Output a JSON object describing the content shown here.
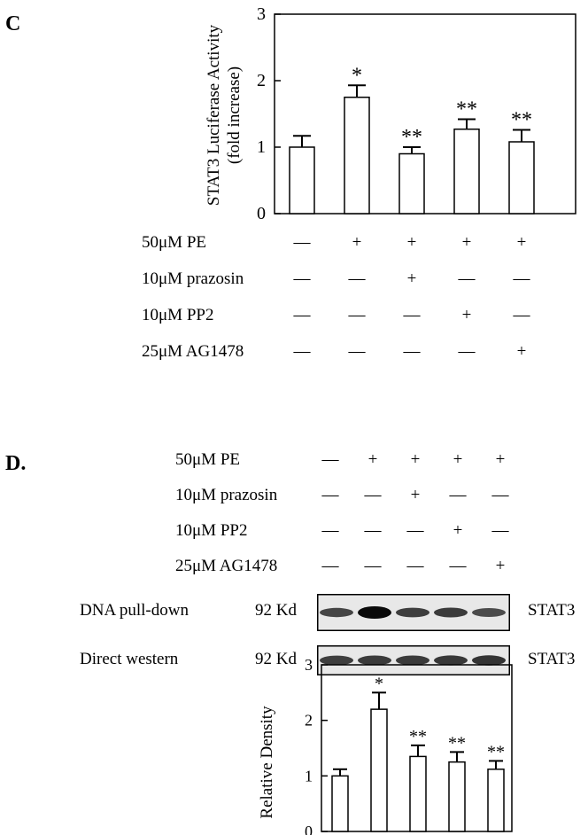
{
  "panel_c": {
    "letter": "C",
    "chart_data": {
      "type": "bar",
      "ylabel_line1": "STAT3 Luciferase Activity",
      "ylabel_line2": "(fold increase)",
      "ylim": [
        0,
        3
      ],
      "yticks": [
        "0",
        "1",
        "2",
        "3"
      ],
      "values": [
        1.0,
        1.75,
        0.9,
        1.27,
        1.08
      ],
      "errors": [
        0.17,
        0.18,
        0.1,
        0.15,
        0.18
      ],
      "significance": [
        "",
        "*",
        "**",
        "**",
        "**"
      ],
      "grid": false
    },
    "conditions": [
      {
        "label": "50μM PE",
        "signs": [
          "—",
          "+",
          "+",
          "+",
          "+"
        ]
      },
      {
        "label": "10μM prazosin",
        "signs": [
          "—",
          "—",
          "+",
          "—",
          "—"
        ]
      },
      {
        "label": "10μM PP2",
        "signs": [
          "—",
          "—",
          "—",
          "+",
          "—"
        ]
      },
      {
        "label": "25μM AG1478",
        "signs": [
          "—",
          "—",
          "—",
          "—",
          "+"
        ]
      }
    ]
  },
  "panel_d": {
    "letter": "D.",
    "conditions": [
      {
        "label": "50μM PE",
        "signs": [
          "—",
          "+",
          "+",
          "+",
          "+"
        ]
      },
      {
        "label": "10μM prazosin",
        "signs": [
          "—",
          "—",
          "+",
          "—",
          "—"
        ]
      },
      {
        "label": "10μM PP2",
        "signs": [
          "—",
          "—",
          "—",
          "+",
          "—"
        ]
      },
      {
        "label": "25μM AG1478",
        "signs": [
          "—",
          "—",
          "—",
          "—",
          "+"
        ]
      }
    ],
    "blots": [
      {
        "label": "DNA pull-down",
        "size": "92 Kd",
        "protein": "STAT3",
        "intensity": [
          0.55,
          1.0,
          0.6,
          0.62,
          0.5
        ]
      },
      {
        "label": "Direct western",
        "size": "92 Kd",
        "protein": "STAT3",
        "intensity": [
          0.6,
          0.62,
          0.62,
          0.65,
          0.68
        ]
      }
    ],
    "chart_data": {
      "type": "bar",
      "ylabel": "Relative Density",
      "ylim": [
        0,
        3
      ],
      "yticks": [
        "0",
        "1",
        "2",
        "3"
      ],
      "values": [
        1.0,
        2.2,
        1.35,
        1.25,
        1.12
      ],
      "errors": [
        0.12,
        0.3,
        0.2,
        0.18,
        0.15
      ],
      "significance": [
        "",
        "*",
        "**",
        "**",
        "**"
      ],
      "grid": false
    }
  }
}
